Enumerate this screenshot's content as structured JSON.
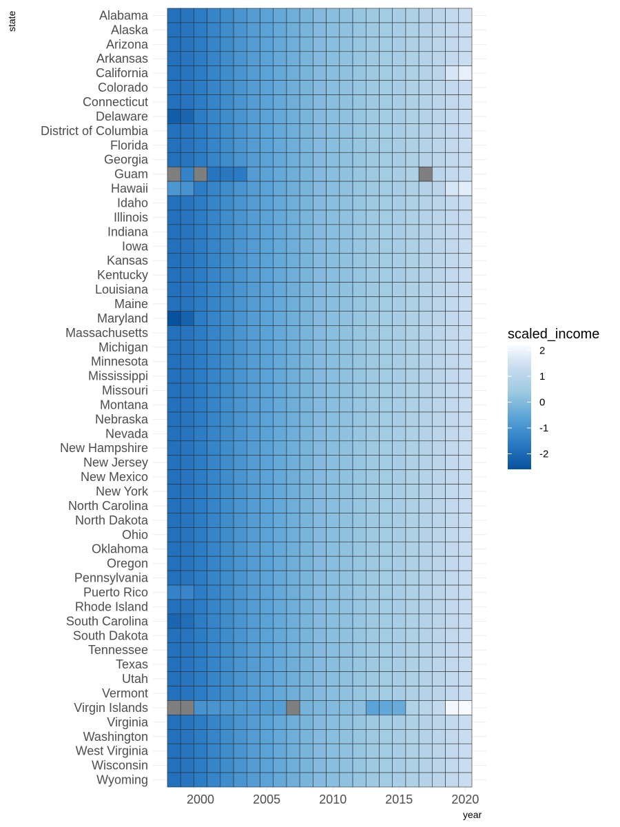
{
  "chart_data": {
    "type": "heatmap",
    "title": "",
    "xlabel": "year",
    "ylabel": "state",
    "x": [
      1998,
      1999,
      2000,
      2001,
      2002,
      2003,
      2004,
      2005,
      2006,
      2007,
      2008,
      2009,
      2010,
      2011,
      2012,
      2013,
      2014,
      2015,
      2016,
      2017,
      2018,
      2019,
      2020
    ],
    "x_ticks": [
      2000,
      2005,
      2010,
      2015,
      2020
    ],
    "categories": [
      "Alabama",
      "Alaska",
      "Arizona",
      "Arkansas",
      "California",
      "Colorado",
      "Connecticut",
      "Delaware",
      "District of Columbia",
      "Florida",
      "Georgia",
      "Guam",
      "Hawaii",
      "Idaho",
      "Illinois",
      "Indiana",
      "Iowa",
      "Kansas",
      "Kentucky",
      "Louisiana",
      "Maine",
      "Maryland",
      "Massachusetts",
      "Michigan",
      "Minnesota",
      "Mississippi",
      "Missouri",
      "Montana",
      "Nebraska",
      "Nevada",
      "New Hampshire",
      "New Jersey",
      "New Mexico",
      "New York",
      "North Carolina",
      "North Dakota",
      "Ohio",
      "Oklahoma",
      "Oregon",
      "Pennsylvania",
      "Puerto Rico",
      "Rhode Island",
      "South Carolina",
      "South Dakota",
      "Tennessee",
      "Texas",
      "Utah",
      "Vermont",
      "Virgin Islands",
      "Virginia",
      "Washington",
      "West Virginia",
      "Wisconsin",
      "Wyoming"
    ],
    "base_values": [
      -1.85,
      -1.75,
      -1.55,
      -1.35,
      -1.15,
      -0.95,
      -0.75,
      -0.6,
      -0.45,
      -0.3,
      -0.15,
      0.0,
      0.1,
      0.2,
      0.3,
      0.4,
      0.5,
      0.6,
      0.75,
      0.9,
      1.05,
      1.2,
      1.35
    ],
    "overrides": {
      "California": {
        "2019": 1.6,
        "2020": 1.9
      },
      "Delaware": {
        "1998": -2.3,
        "1999": -2.1
      },
      "Guam": {
        "1998": null,
        "1999": -1.4,
        "2000": null,
        "2001": -1.75,
        "2002": -1.7,
        "2003": -1.6,
        "2017": null
      },
      "Hawaii": {
        "1998": -0.9,
        "1999": -1.0,
        "2019": 1.6,
        "2020": 1.8
      },
      "Maryland": {
        "1998": -2.6,
        "1999": -2.2
      },
      "South Carolina": {
        "1998": -2.1,
        "1999": -1.9
      },
      "Puerto Rico": {
        "1998": -1.4,
        "1999": -1.3
      },
      "Virgin Islands": {
        "1998": null,
        "1999": null,
        "2000": -1.0,
        "2001": -0.95,
        "2002": -0.9,
        "2003": -0.85,
        "2004": -0.8,
        "2005": -0.75,
        "2006": -0.7,
        "2007": null,
        "2008": -0.2,
        "2009": -0.1,
        "2010": 0.0,
        "2011": 0.05,
        "2012": 0.1,
        "2013": -0.6,
        "2014": -0.5,
        "2015": -0.4,
        "2016": 0.8,
        "2017": 1.0,
        "2018": 1.2,
        "2019": 2.1,
        "2020": 2.2
      }
    },
    "na_color": "#7f7f7f",
    "color_scale": {
      "name": "scaled_income",
      "stops": [
        {
          "value": -2.6,
          "color": "#08519c"
        },
        {
          "value": -1.6,
          "color": "#2b7bc4"
        },
        {
          "value": -0.6,
          "color": "#5aa3d6"
        },
        {
          "value": 0.4,
          "color": "#9ecae1"
        },
        {
          "value": 1.3,
          "color": "#c6dbef"
        },
        {
          "value": 2.2,
          "color": "#f7fbff"
        }
      ],
      "ticks": [
        2,
        1,
        0,
        -1,
        -2
      ],
      "tick_labels": [
        "2",
        "1",
        "0",
        "-1",
        "-2"
      ],
      "range": [
        -2.6,
        2.2
      ]
    },
    "grid": true,
    "legend_position": "right"
  }
}
